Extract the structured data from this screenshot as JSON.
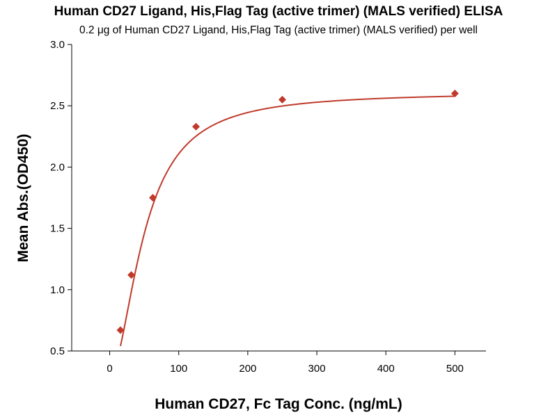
{
  "chart_data": {
    "type": "scatter",
    "title": "Human CD27 Ligand, His,Flag Tag (active trimer) (MALS verified) ELISA",
    "subtitle": "0.2 μg of Human CD27 Ligand, His,Flag Tag (active trimer) (MALS verified) per well",
    "xlabel": "Human CD27, Fc Tag Conc. (ng/mL)",
    "ylabel": "Mean Abs.(OD450)",
    "xlim": [
      -55,
      545
    ],
    "ylim": [
      0.5,
      3.0
    ],
    "xticks": [
      0,
      100,
      200,
      300,
      400,
      500
    ],
    "yticks": [
      0.5,
      1.0,
      1.5,
      2.0,
      2.5,
      3.0
    ],
    "xtick_labels": [
      "0",
      "100",
      "200",
      "300",
      "400",
      "500"
    ],
    "ytick_labels": [
      "0.5",
      "1.0",
      "1.5",
      "2.0",
      "2.5",
      "3.0"
    ],
    "series": [
      {
        "name": "Mean Abs.(OD450)",
        "x": [
          15.6,
          31.3,
          62.5,
          125,
          250,
          500
        ],
        "y": [
          0.67,
          1.12,
          1.75,
          2.33,
          2.55,
          2.6
        ],
        "marker": "diamond",
        "fit": {
          "model": "4PL",
          "bottom": 0.3,
          "top": 2.61,
          "ec50": 50,
          "hill": 1.85
        }
      }
    ],
    "color": "#c0392b",
    "grid": false
  }
}
